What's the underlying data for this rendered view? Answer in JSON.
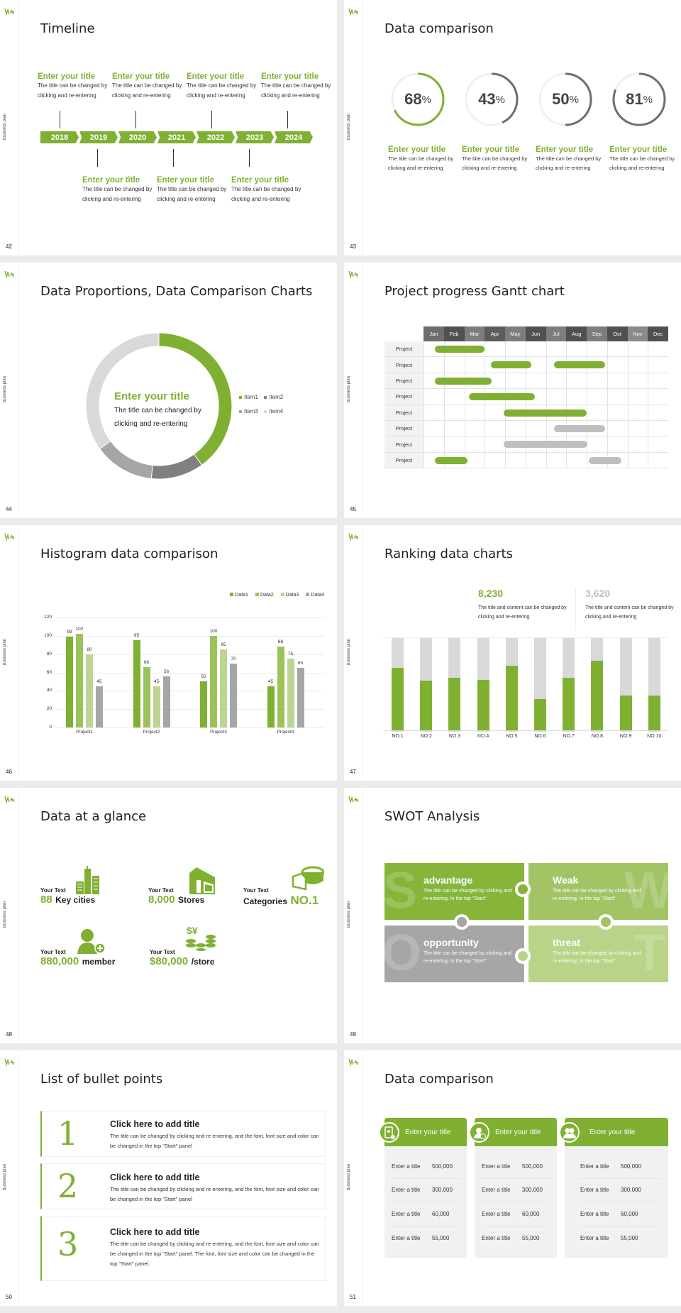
{
  "rail_label": "Business plan",
  "accent_color": "#7fb032",
  "slides": {
    "timeline": {
      "page": "42",
      "title": "Timeline",
      "years": [
        "2018",
        "2019",
        "2020",
        "2021",
        "2022",
        "2023",
        "2024"
      ],
      "top_items": [
        {
          "title": "Enter your title",
          "text": "The title can be changed by clicking and re-entering"
        },
        {
          "title": "Enter your title",
          "text": "The title can be changed by clicking and re-entering"
        },
        {
          "title": "Enter your title",
          "text": "The title can be changed by clicking and re-entering"
        },
        {
          "title": "Enter your title",
          "text": "The title can be changed by clicking and re-entering"
        }
      ],
      "bottom_items": [
        {
          "title": "Enter your title",
          "text": "The title can be changed by clicking and re-entering"
        },
        {
          "title": "Enter your title",
          "text": "The title can be changed by clicking and re-entering"
        },
        {
          "title": "Enter your title",
          "text": "The title can be changed by clicking and re-entering"
        }
      ]
    },
    "data_comparison_rings": {
      "page": "43",
      "title": "Data comparison",
      "rings": [
        {
          "value": "68",
          "unit": "%",
          "color": "#7fb032",
          "title": "Enter your title",
          "text": "The title can be changed by clicking and re-entering"
        },
        {
          "value": "43",
          "unit": "%",
          "color": "#6e6e6e",
          "title": "Enter your title",
          "text": "The title can be changed by clicking and re-entering"
        },
        {
          "value": "50",
          "unit": "%",
          "color": "#6e6e6e",
          "title": "Enter your title",
          "text": "The title can be changed by clicking and re-entering"
        },
        {
          "value": "81",
          "unit": "%",
          "color": "#6e6e6e",
          "title": "Enter your title",
          "text": "The title can be changed by clicking and re-entering"
        }
      ]
    },
    "donut": {
      "page": "44",
      "title": "Data Proportions, Data Comparison Charts",
      "center_title": "Enter your title",
      "center_text": "The title can be changed by clicking and re-entering",
      "legend": [
        "Item1",
        "Item2",
        "Item3",
        "Item4"
      ]
    },
    "gantt": {
      "page": "45",
      "title": "Project progress Gantt chart",
      "months": [
        "Jan",
        "Feb",
        "Mar",
        "Apr",
        "May",
        "Jun",
        "Jul",
        "Aug",
        "Sep",
        "Oct",
        "Nov",
        "Dec"
      ],
      "row_label": "Project"
    },
    "histogram": {
      "page": "46",
      "title": "Histogram data comparison"
    },
    "ranking": {
      "page": "47",
      "title": "Ranking data charts",
      "stat1_value": "8,230",
      "stat1_text": "The title and content can be changed by clicking and re-entering",
      "stat2_value": "3,620",
      "stat2_text": "The title and content can be changed by clicking and re-entering"
    },
    "glance": {
      "page": "48",
      "title": "Data at a glance",
      "items": [
        {
          "label": "Your Text",
          "value": "88",
          "suffix": "Key cities",
          "icon": "buildings-icon"
        },
        {
          "label": "Your Text",
          "value": "8,000",
          "suffix": "Stores",
          "icon": "store-icon"
        },
        {
          "label": "Your Text",
          "prefix": "Categories",
          "value": "NO.1",
          "icon": "cheese-icon"
        },
        {
          "label": "Your Text",
          "value": "880,000",
          "suffix": "member",
          "icon": "add-member-icon"
        },
        {
          "label": "Your Text",
          "value": "$80,000",
          "suffix": "/store",
          "icon": "coins-icon"
        }
      ]
    },
    "swot": {
      "page": "49",
      "title": "SWOT Analysis",
      "quadrants": [
        {
          "letter": "S",
          "heading": "advantage",
          "text": "The title can be changed by clicking and re-entering. In the top \"Start\"",
          "color": "#86b53a"
        },
        {
          "letter": "W",
          "heading": "Weak",
          "text": "The title can be changed by clicking and re-entering. In the top \"Start\"",
          "color": "#a2c465"
        },
        {
          "letter": "O",
          "heading": "opportunity",
          "text": "The title can be changed by clicking and re-entering. In the top \"Start\"",
          "color": "#a6a6a6"
        },
        {
          "letter": "T",
          "heading": "threat",
          "text": "The title can be changed by clicking and re-entering. In the top \"Start\"",
          "color": "#b9d488"
        }
      ]
    },
    "bullets": {
      "page": "50",
      "title": "List of bullet points",
      "items": [
        {
          "num": "1",
          "heading": "Click here to add title",
          "text": "The title can be changed by clicking and re-entering, and the font, font size and color can be changed in the top \"Start\" panel"
        },
        {
          "num": "2",
          "heading": "Click here to add title",
          "text": "The title can be changed by clicking and re-entering, and the font, font size and color can be changed in the top \"Start\" panel"
        },
        {
          "num": "3",
          "heading": "Click here to add title",
          "text": "The title can be changed by clicking and re-entering, and the font, font size and color can be changed in the top \"Start\" panel. The font, font size and color can be changed in the top \"Start\" panel."
        }
      ]
    },
    "table_cards": {
      "page": "51",
      "title": "Data comparison",
      "cards": [
        {
          "header": "Enter your title",
          "icon": "phone-contact-icon",
          "rows": [
            [
              "Enter a title",
              "500,000"
            ],
            [
              "Enter a title",
              "300,000"
            ],
            [
              "Enter a title",
              "60,000"
            ],
            [
              "Enter a title",
              "55,000"
            ]
          ]
        },
        {
          "header": "Enter your title",
          "icon": "add-user-icon",
          "rows": [
            [
              "Enter a title",
              "500,000"
            ],
            [
              "Enter a title",
              "300,000"
            ],
            [
              "Enter a title",
              "60,000"
            ],
            [
              "Enter a title",
              "55,000"
            ]
          ]
        },
        {
          "header": "Enter your title",
          "icon": "users-icon",
          "rows": [
            [
              "Enter a title",
              "500,000"
            ],
            [
              "Enter a title",
              "300,000"
            ],
            [
              "Enter a title",
              "60,000"
            ],
            [
              "Enter a title",
              "55,000"
            ]
          ]
        }
      ]
    }
  },
  "chart_data": [
    {
      "type": "pie",
      "title": "Data Proportions, Data Comparison Charts",
      "categories": [
        "Item1",
        "Item2",
        "Item3",
        "Item4"
      ],
      "values": [
        40,
        13,
        17,
        30
      ],
      "colors": [
        "#7fb032",
        "#808080",
        "#a6a6a6",
        "#d9d9d9"
      ],
      "legend_position": "right"
    },
    {
      "type": "bar",
      "title": "Histogram data comparison",
      "categories": [
        "Project1",
        "Project2",
        "Project3",
        "Project4"
      ],
      "series": [
        {
          "name": "Data1",
          "values": [
            99,
            95,
            50,
            45
          ],
          "color": "#7fb032"
        },
        {
          "name": "Data2",
          "values": [
            102,
            66,
            100,
            88
          ],
          "color": "#9cc25a"
        },
        {
          "name": "Data3",
          "values": [
            80,
            45,
            85,
            75
          ],
          "color": "#bcd594"
        },
        {
          "name": "Data4",
          "values": [
            45,
            56,
            70,
            65
          ],
          "color": "#a6a6a6"
        }
      ],
      "yticks": [
        0,
        20,
        40,
        60,
        80,
        100,
        120
      ],
      "ylim": [
        0,
        120
      ],
      "grid": true,
      "legend_position": "top-right"
    },
    {
      "type": "bar",
      "title": "Ranking data charts",
      "categories": [
        "NO.1",
        "NO.2",
        "NO.3",
        "NO.4",
        "NO.5",
        "NO.6",
        "NO.7",
        "NO.8",
        "NO.9",
        "NO.10"
      ],
      "series": [
        {
          "name": "value",
          "values": [
            67,
            53,
            56,
            54,
            69,
            33,
            56,
            74,
            37,
            37
          ],
          "color": "#7fb032"
        },
        {
          "name": "remainder",
          "values": [
            33,
            47,
            44,
            46,
            31,
            67,
            44,
            26,
            63,
            63
          ],
          "color": "#d9d9d9"
        }
      ],
      "stacked": true,
      "ylim": [
        0,
        100
      ]
    },
    {
      "type": "table",
      "title": "Project progress Gantt chart",
      "categories": [
        "Jan",
        "Feb",
        "Mar",
        "Apr",
        "May",
        "Jun",
        "Jul",
        "Aug",
        "Sep",
        "Oct",
        "Nov",
        "Dec"
      ],
      "tasks": [
        {
          "row": 1,
          "start": 0.55,
          "end": 3.0,
          "color": "#7fb032"
        },
        {
          "row": 2,
          "start": 3.3,
          "end": 5.3,
          "color": "#7fb032"
        },
        {
          "row": 2,
          "start": 6.4,
          "end": 8.9,
          "color": "#7fb032"
        },
        {
          "row": 3,
          "start": 0.55,
          "end": 3.35,
          "color": "#7fb032"
        },
        {
          "row": 4,
          "start": 2.25,
          "end": 5.45,
          "color": "#7fb032"
        },
        {
          "row": 5,
          "start": 3.95,
          "end": 8.0,
          "color": "#7fb032"
        },
        {
          "row": 6,
          "start": 6.4,
          "end": 8.9,
          "color": "#bfbfbf"
        },
        {
          "row": 7,
          "start": 3.95,
          "end": 8.05,
          "color": "#bfbfbf"
        },
        {
          "row": 8,
          "start": 0.55,
          "end": 2.15,
          "color": "#7fb032"
        },
        {
          "row": 8,
          "start": 8.1,
          "end": 9.7,
          "color": "#bfbfbf"
        }
      ]
    }
  ]
}
